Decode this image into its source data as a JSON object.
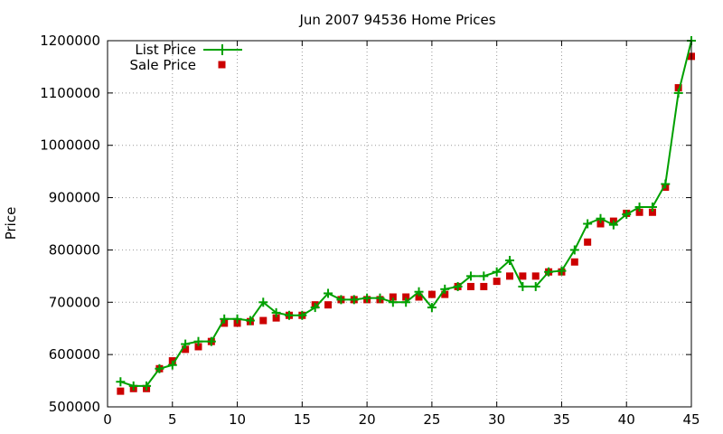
{
  "chart_data": {
    "type": "line",
    "title": "Jun 2007 94536 Home Prices",
    "xlabel": "",
    "ylabel": "Price",
    "xlim": [
      0,
      45
    ],
    "ylim": [
      500000,
      1200000
    ],
    "xticks": [
      0,
      5,
      10,
      15,
      20,
      25,
      30,
      35,
      40,
      45
    ],
    "yticks": [
      500000,
      600000,
      700000,
      800000,
      900000,
      1000000,
      1100000,
      1200000
    ],
    "grid": true,
    "legend_position": "top-left",
    "series": [
      {
        "name": "List Price",
        "style": "line+cross",
        "color": "#00a000",
        "x": [
          1,
          2,
          3,
          4,
          5,
          6,
          7,
          8,
          9,
          10,
          11,
          12,
          13,
          14,
          15,
          16,
          17,
          18,
          19,
          20,
          21,
          22,
          23,
          24,
          25,
          26,
          27,
          28,
          29,
          30,
          31,
          32,
          33,
          34,
          35,
          36,
          37,
          38,
          39,
          40,
          41,
          42,
          43,
          44,
          45
        ],
        "values": [
          548000,
          540000,
          540000,
          573000,
          580000,
          620000,
          625000,
          625000,
          668000,
          668000,
          665000,
          700000,
          680000,
          675000,
          675000,
          690000,
          717000,
          705000,
          705000,
          708000,
          708000,
          700000,
          700000,
          720000,
          690000,
          725000,
          730000,
          750000,
          750000,
          758000,
          780000,
          730000,
          730000,
          758000,
          760000,
          800000,
          850000,
          860000,
          848000,
          868000,
          882000,
          882000,
          926000,
          1100000,
          1200000
        ]
      },
      {
        "name": "Sale Price",
        "style": "square-points",
        "color": "#cc0000",
        "x": [
          1,
          2,
          3,
          4,
          5,
          6,
          7,
          8,
          9,
          10,
          11,
          12,
          13,
          14,
          15,
          16,
          17,
          18,
          19,
          20,
          21,
          22,
          23,
          24,
          25,
          26,
          27,
          28,
          29,
          30,
          31,
          32,
          33,
          34,
          35,
          36,
          37,
          38,
          39,
          40,
          41,
          42,
          43,
          44,
          45
        ],
        "values": [
          530000,
          535000,
          535000,
          573000,
          588000,
          610000,
          615000,
          625000,
          660000,
          660000,
          663000,
          665000,
          670000,
          675000,
          675000,
          695000,
          695000,
          705000,
          705000,
          705000,
          705000,
          710000,
          710000,
          710000,
          715000,
          715000,
          730000,
          730000,
          730000,
          740000,
          750000,
          750000,
          750000,
          758000,
          758000,
          777000,
          815000,
          850000,
          855000,
          870000,
          872000,
          872000,
          920000,
          1110000,
          1170000
        ]
      }
    ]
  }
}
